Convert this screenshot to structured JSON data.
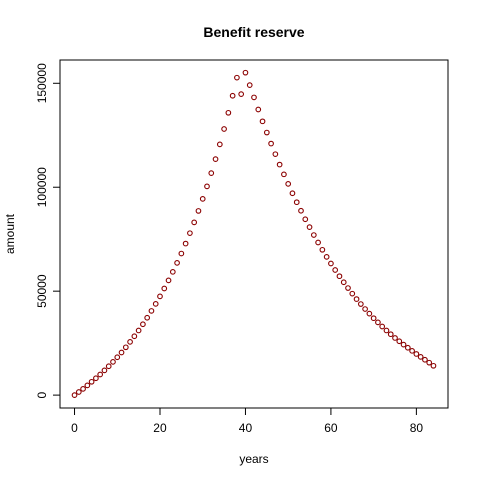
{
  "chart_data": {
    "type": "scatter",
    "title": "Benefit reserve",
    "xlabel": "years",
    "ylabel": "amount",
    "xlim": [
      -3.4,
      87.4
    ],
    "ylim": [
      -6200,
      161200
    ],
    "xticks": [
      0,
      20,
      40,
      60,
      80
    ],
    "yticks": [
      0,
      50000,
      100000,
      150000
    ],
    "grid": false,
    "legend": "none",
    "point_color": "#8b0000",
    "series": [
      {
        "x": [
          0,
          1,
          2,
          3,
          4,
          5,
          6,
          7,
          8,
          9,
          10,
          11,
          12,
          13,
          14,
          15,
          16,
          17,
          18,
          19,
          20,
          21,
          22,
          23,
          24,
          25,
          26,
          27,
          28,
          29,
          30,
          31,
          32,
          33,
          34,
          35,
          36,
          37,
          38,
          39,
          40,
          41,
          42,
          43,
          44,
          45,
          46,
          47,
          48,
          49,
          50,
          51,
          52,
          53,
          54,
          55,
          56,
          57,
          58,
          59,
          60,
          61,
          62,
          63,
          64,
          65,
          66,
          67,
          68,
          69,
          70,
          71,
          72,
          73,
          74,
          75,
          76,
          77,
          78,
          79,
          80,
          81,
          82,
          83,
          84
        ],
        "y": [
          0,
          1500,
          3000,
          4700,
          6400,
          8100,
          9900,
          11900,
          13900,
          16000,
          18200,
          20500,
          23000,
          25600,
          28300,
          31100,
          34100,
          37200,
          40500,
          43900,
          47500,
          51300,
          55200,
          59300,
          63600,
          68100,
          72900,
          77900,
          83100,
          88600,
          94400,
          100400,
          106800,
          113500,
          120600,
          128000,
          135800,
          144000,
          152700,
          144800,
          155100,
          149100,
          143200,
          137400,
          131700,
          126300,
          121000,
          115900,
          110900,
          106200,
          101600,
          97100,
          92800,
          88700,
          84600,
          80800,
          77000,
          73400,
          69900,
          66500,
          63300,
          60200,
          57200,
          54300,
          51500,
          48800,
          46200,
          43800,
          41400,
          39200,
          37000,
          35000,
          33000,
          31100,
          29300,
          27500,
          25900,
          24300,
          22800,
          21300,
          19800,
          18400,
          17000,
          15600,
          14100
        ]
      }
    ]
  }
}
